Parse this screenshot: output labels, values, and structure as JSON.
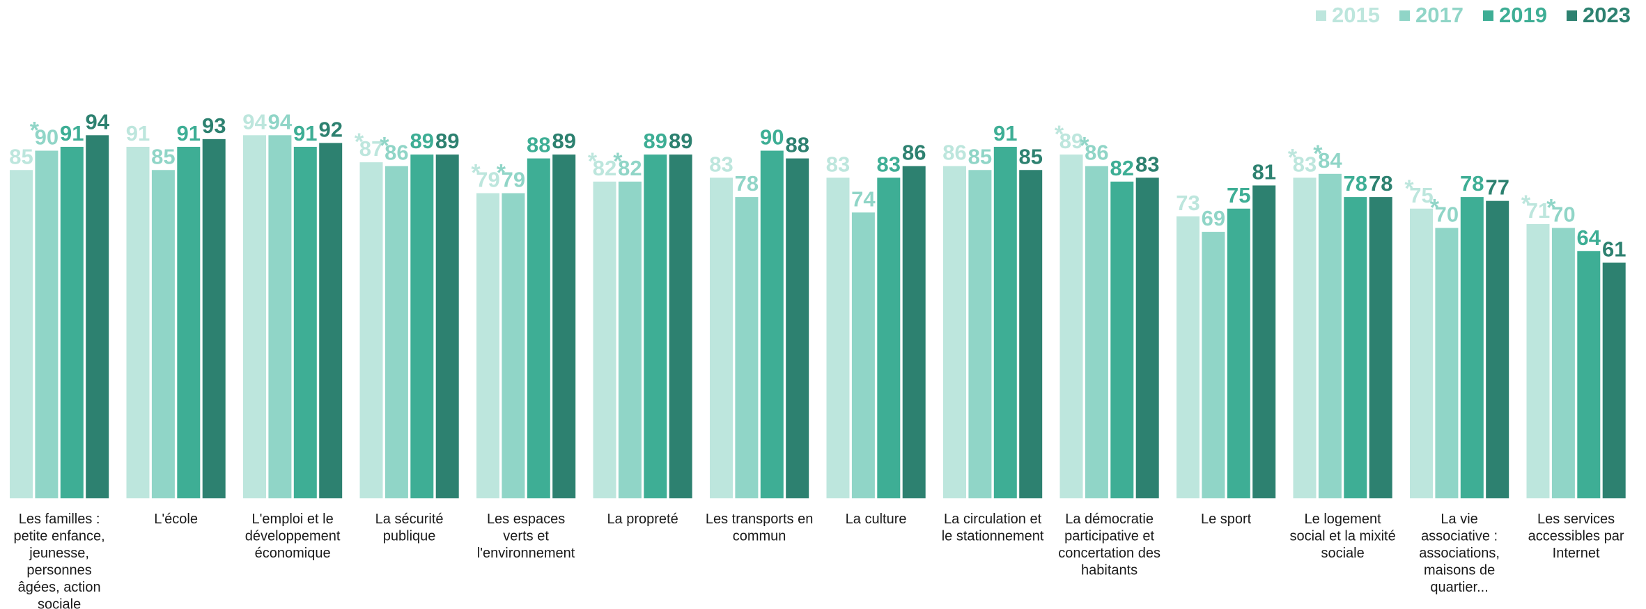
{
  "chart_data": {
    "type": "bar",
    "categories": [
      [
        "Les familles :",
        "petite enfance,",
        "jeunesse,",
        "personnes",
        "âgées, action",
        "sociale"
      ],
      [
        "L'école"
      ],
      [
        "L'emploi et le",
        "développement",
        "économique"
      ],
      [
        "La sécurité",
        "publique"
      ],
      [
        "Les espaces",
        "verts et",
        "l'environnement"
      ],
      [
        "La propreté"
      ],
      [
        "Les transports en",
        "commun"
      ],
      [
        "La culture"
      ],
      [
        "La circulation et",
        "le stationnement"
      ],
      [
        "La démocratie",
        "participative et",
        "concertation des",
        "habitants"
      ],
      [
        "Le sport"
      ],
      [
        "Le logement",
        "social et la mixité",
        "sociale"
      ],
      [
        "La vie",
        "associative :",
        "associations,",
        "maisons de",
        "quartier..."
      ],
      [
        "Les services",
        "accessibles par",
        "Internet"
      ]
    ],
    "series": [
      {
        "name": "2015",
        "color": "#bde6dd",
        "values": [
          85,
          91,
          94,
          87,
          79,
          82,
          83,
          83,
          86,
          89,
          73,
          83,
          75,
          71
        ],
        "labels": [
          "85",
          "91",
          "94",
          "87",
          "79",
          "82",
          "83",
          "83",
          "86",
          "89",
          "73",
          "83",
          "75",
          "71"
        ],
        "starred": [
          false,
          false,
          false,
          true,
          true,
          true,
          false,
          false,
          false,
          true,
          false,
          true,
          true,
          true
        ]
      },
      {
        "name": "2017",
        "color": "#90d5c7",
        "values": [
          90,
          85,
          94,
          86,
          79,
          82,
          78,
          74,
          85,
          86,
          69,
          84,
          70,
          70
        ],
        "labels": [
          "90",
          "85",
          "94",
          "86",
          "79",
          "82",
          "78",
          "74",
          "85",
          "86",
          "69",
          "84",
          "70",
          "70"
        ],
        "starred": [
          true,
          false,
          false,
          true,
          true,
          true,
          false,
          false,
          false,
          true,
          false,
          true,
          true,
          true
        ]
      },
      {
        "name": "2019",
        "color": "#3eae95",
        "values": [
          91,
          91,
          91,
          89,
          88,
          89,
          90,
          83,
          91,
          82,
          75,
          78,
          78,
          64
        ],
        "labels": [
          "91",
          "91",
          "91",
          "89",
          "88",
          "89",
          "90",
          "83",
          "91",
          "82",
          "75",
          "78",
          "78",
          "64"
        ],
        "starred": [
          false,
          false,
          false,
          false,
          false,
          false,
          false,
          false,
          false,
          false,
          false,
          false,
          false,
          false
        ]
      },
      {
        "name": "2023",
        "color": "#2d8170",
        "values": [
          94,
          93,
          92,
          89,
          89,
          89,
          88,
          86,
          85,
          83,
          81,
          78,
          77,
          61
        ],
        "labels": [
          "94",
          "93",
          "92",
          "89",
          "89",
          "89",
          "88",
          "86",
          "85",
          "83",
          "81",
          "78",
          "77",
          "61"
        ],
        "starred": [
          false,
          false,
          false,
          false,
          false,
          false,
          false,
          false,
          false,
          false,
          false,
          false,
          false,
          false
        ]
      }
    ],
    "star_mark": "*",
    "legend_position": "top-right",
    "grid": false,
    "ylim": [
      0,
      100
    ]
  }
}
